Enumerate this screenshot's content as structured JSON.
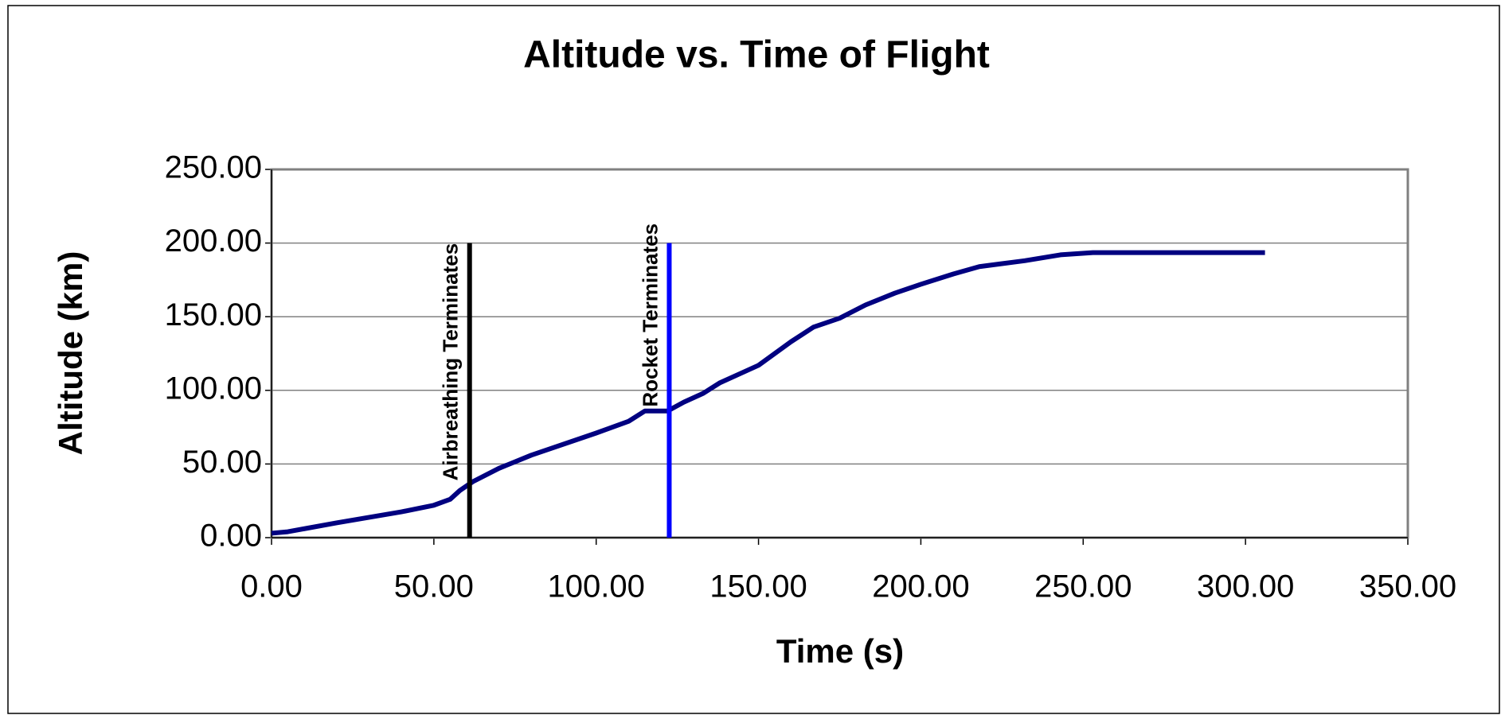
{
  "chart_data": {
    "type": "line",
    "title": "Altitude vs. Time of Flight",
    "xlabel": "Time (s)",
    "ylabel": "Altitude (km)",
    "x": [
      0,
      5,
      10,
      20,
      40,
      50,
      55,
      58,
      62,
      70,
      80,
      100,
      110,
      115,
      122,
      127,
      133,
      138,
      145,
      150,
      160,
      167,
      175,
      183,
      192,
      200,
      210,
      218,
      225,
      232,
      243,
      253,
      280,
      306
    ],
    "series": [
      {
        "color": "#000080",
        "values": [
          3,
          4,
          6,
          10,
          17.5,
          22,
          26,
          32,
          38,
          47,
          56,
          71,
          79,
          86,
          86,
          92,
          98,
          105,
          112,
          117,
          133,
          143,
          149,
          158,
          166,
          172,
          179,
          184,
          186,
          188,
          192,
          193.5,
          193.5,
          193.5
        ]
      }
    ],
    "vlines": [
      {
        "label": "Airbreathing Terminates",
        "x": 61,
        "ymin": 0,
        "ymax": 200,
        "color": "#000000"
      },
      {
        "label": "Rocket Terminates",
        "x": 122.5,
        "ymin": 0,
        "ymax": 200,
        "color": "#0000ff"
      }
    ],
    "xlim": [
      0,
      350
    ],
    "xticks": [
      {
        "value": 0,
        "label": "0.00"
      },
      {
        "value": 50,
        "label": "50.00"
      },
      {
        "value": 100,
        "label": "100.00"
      },
      {
        "value": 150,
        "label": "150.00"
      },
      {
        "value": 200,
        "label": "200.00"
      },
      {
        "value": 250,
        "label": "250.00"
      },
      {
        "value": 300,
        "label": "300.00"
      },
      {
        "value": 350,
        "label": "350.00"
      }
    ],
    "ylim": [
      0,
      250
    ],
    "yticks": [
      {
        "value": 0,
        "label": "0.00"
      },
      {
        "value": 50,
        "label": "50.00"
      },
      {
        "value": 100,
        "label": "100.00"
      },
      {
        "value": 150,
        "label": "150.00"
      },
      {
        "value": 200,
        "label": "200.00"
      },
      {
        "value": 250,
        "label": "250.00"
      }
    ],
    "grid": true
  }
}
